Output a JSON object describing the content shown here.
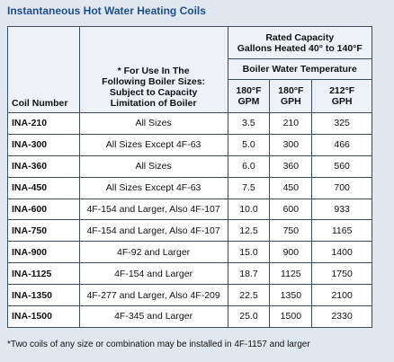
{
  "header": {
    "title": "Instantaneous Hot Water Heating Coils"
  },
  "table": {
    "columns": {
      "coil": "Coil Number",
      "note": [
        "* For Use In The",
        "Following Boiler Sizes:",
        "Subject to Capacity",
        "Limitation of Boiler"
      ],
      "capacity": [
        "Rated Capacity",
        "Gallons Heated 40° to 140°F"
      ],
      "temperature": "Boiler Water Temperature",
      "units": [
        [
          "180°F",
          "GPM"
        ],
        [
          "180°F",
          "GPH"
        ],
        [
          "212°F",
          "GPH"
        ]
      ]
    },
    "rows": [
      [
        "INA-210",
        "All Sizes",
        "3.5",
        "210",
        "325"
      ],
      [
        "INA-300",
        "All Sizes Except 4F-63",
        "5.0",
        "300",
        "466"
      ],
      [
        "INA-360",
        "All Sizes",
        "6.0",
        "360",
        "560"
      ],
      [
        "INA-450",
        "All Sizes Except 4F-63",
        "7.5",
        "450",
        "700"
      ],
      [
        "INA-600",
        "4F-154 and Larger, Also 4F-107",
        "10.0",
        "600",
        "933"
      ],
      [
        "INA-750",
        "4F-154 and Larger, Also 4F-107",
        "12.5",
        "750",
        "1165"
      ],
      [
        "INA-900",
        "4F-92 and Larger",
        "15.0",
        "900",
        "1400"
      ],
      [
        "INA-1125",
        "4F-154 and Larger",
        "18.7",
        "1125",
        "1750"
      ],
      [
        "INA-1350",
        "4F-277 and Larger, Also 4F-209",
        "22.5",
        "1350",
        "2100"
      ],
      [
        "INA-1500",
        "4F-345 and Larger",
        "25.0",
        "1500",
        "2330"
      ]
    ]
  },
  "footnote": "*Two coils of any size or combination may be installed in 4F-1157 and larger"
}
